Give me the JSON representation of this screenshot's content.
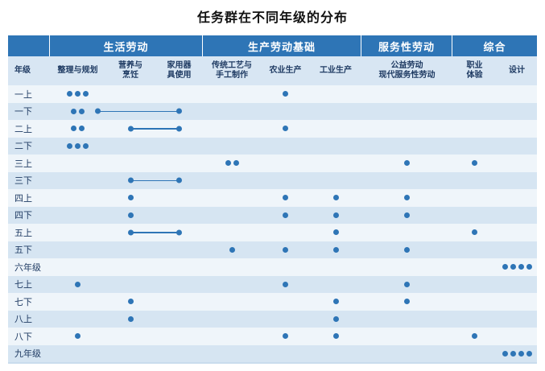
{
  "colors": {
    "header_bg": "#2E75B6",
    "header_text": "#FFFFFF",
    "subheader_bg": "#D8E6F3",
    "row_light": "#EFF5FA",
    "row_dark": "#D6E5F2",
    "dot": "#2E75B6",
    "grade_text": "#1F3B63"
  },
  "chart_data": {
    "type": "table",
    "subtype": "dot_matrix",
    "title": "任务群在不同年级的分布",
    "legend_position": "none",
    "grid": false,
    "column_groups": [
      {
        "label": "",
        "span": 1
      },
      {
        "label": "生活劳动",
        "span": 3
      },
      {
        "label": "生产劳动基础",
        "span": 3
      },
      {
        "label": "服务性劳动",
        "span": 1
      },
      {
        "label": "综合",
        "span": 2
      }
    ],
    "columns": [
      {
        "key": "grade",
        "label": "年级"
      },
      {
        "key": "c1",
        "label": "整理与规划"
      },
      {
        "key": "c2",
        "label": "营养与\n烹饪"
      },
      {
        "key": "c3",
        "label": "家用器\n具使用"
      },
      {
        "key": "c4",
        "label": "传统工艺与\n手工制作"
      },
      {
        "key": "c5",
        "label": "农业生产"
      },
      {
        "key": "c6",
        "label": "工业生产"
      },
      {
        "key": "c7",
        "label": "公益劳动\n现代服务性劳动"
      },
      {
        "key": "c8",
        "label": "职业\n体验"
      },
      {
        "key": "c9",
        "label": "设计"
      }
    ],
    "rows": [
      {
        "grade": "一上",
        "dots": {
          "c1": 3,
          "c5": 1
        }
      },
      {
        "grade": "一下",
        "dots": {
          "c1": 2
        },
        "link": {
          "from": "c1",
          "to": "c3"
        }
      },
      {
        "grade": "二上",
        "dots": {
          "c1": 2,
          "c5": 1
        },
        "link": {
          "from": "c2",
          "to": "c3"
        }
      },
      {
        "grade": "二下",
        "dots": {
          "c1": 3
        }
      },
      {
        "grade": "三上",
        "dots": {
          "c4": 2,
          "c7": 1,
          "c8": 1
        }
      },
      {
        "grade": "三下",
        "dots": {},
        "link": {
          "from": "c2",
          "to": "c3"
        }
      },
      {
        "grade": "四上",
        "dots": {
          "c2": 1,
          "c5": 1,
          "c6": 1,
          "c7": 1
        }
      },
      {
        "grade": "四下",
        "dots": {
          "c2": 1,
          "c5": 1,
          "c6": 1,
          "c7": 1
        }
      },
      {
        "grade": "五上",
        "dots": {
          "c6": 1,
          "c8": 1
        },
        "link": {
          "from": "c2",
          "to": "c3"
        }
      },
      {
        "grade": "五下",
        "dots": {
          "c4": 1,
          "c5": 1,
          "c6": 1,
          "c7": 1
        }
      },
      {
        "grade": "六年级",
        "dots": {
          "c9": 4
        }
      },
      {
        "grade": "七上",
        "dots": {
          "c1": 1,
          "c5": 1,
          "c7": 1
        }
      },
      {
        "grade": "七下",
        "dots": {
          "c2": 1,
          "c6": 1,
          "c7": 1
        }
      },
      {
        "grade": "八上",
        "dots": {
          "c2": 1,
          "c6": 1
        }
      },
      {
        "grade": "八下",
        "dots": {
          "c1": 1,
          "c5": 1,
          "c6": 1,
          "c8": 1
        }
      },
      {
        "grade": "九年级",
        "dots": {
          "c9": 4
        }
      }
    ]
  }
}
